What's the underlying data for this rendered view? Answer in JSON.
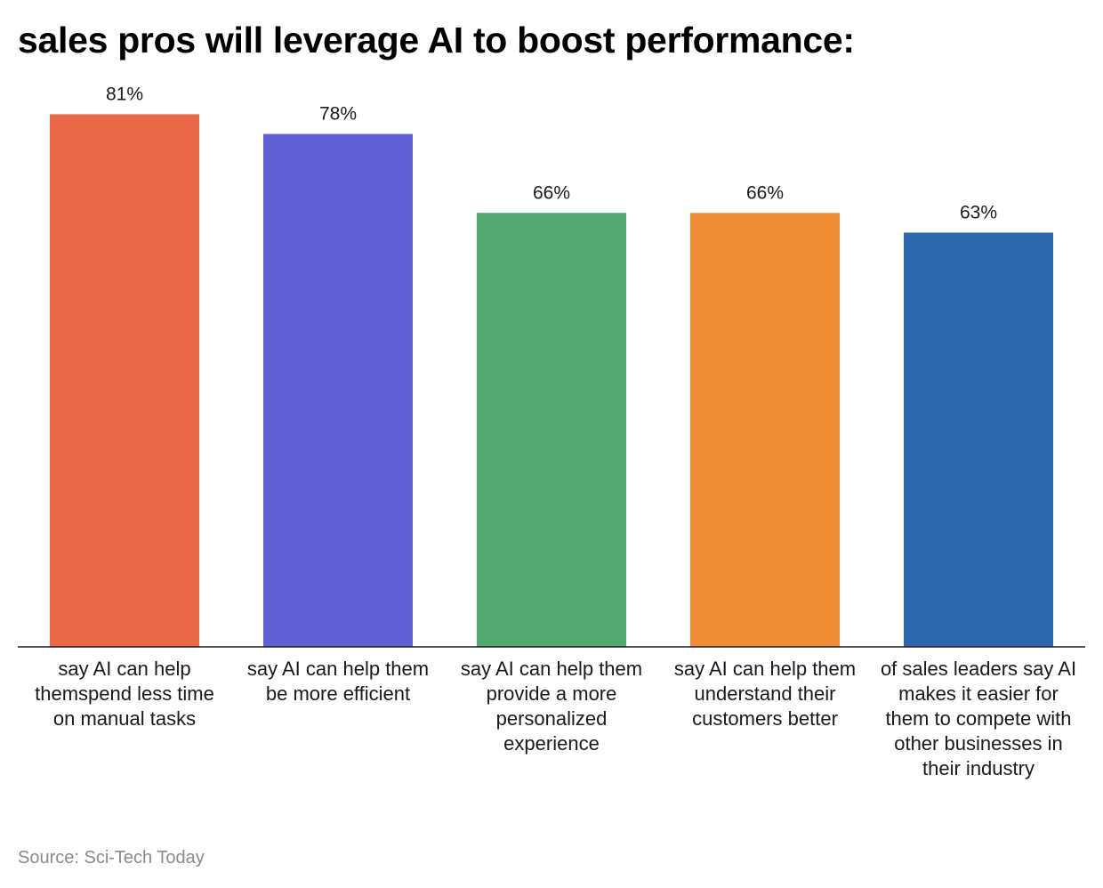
{
  "chart_data": {
    "type": "bar",
    "title": "sales pros will leverage AI to boost performance:",
    "categories": [
      "say AI can help themspend less time on manual tasks",
      "say AI can help them be more efficient",
      "say AI can help them provide a more personalized experience",
      "say AI can help them understand their customers better",
      "of sales leaders say AI makes it easier for them to compete with other businesses in their industry"
    ],
    "values": [
      81,
      78,
      66,
      66,
      63
    ],
    "value_labels": [
      "81%",
      "78%",
      "66%",
      "66%",
      "63%"
    ],
    "colors": [
      "#e96846",
      "#5e60d4",
      "#51a96f",
      "#f08c35",
      "#2c67b0"
    ],
    "xlabel": "",
    "ylabel": "",
    "ylim": [
      0,
      100
    ],
    "grid": false,
    "legend": "none",
    "source": "Source: Sci-Tech Today"
  }
}
